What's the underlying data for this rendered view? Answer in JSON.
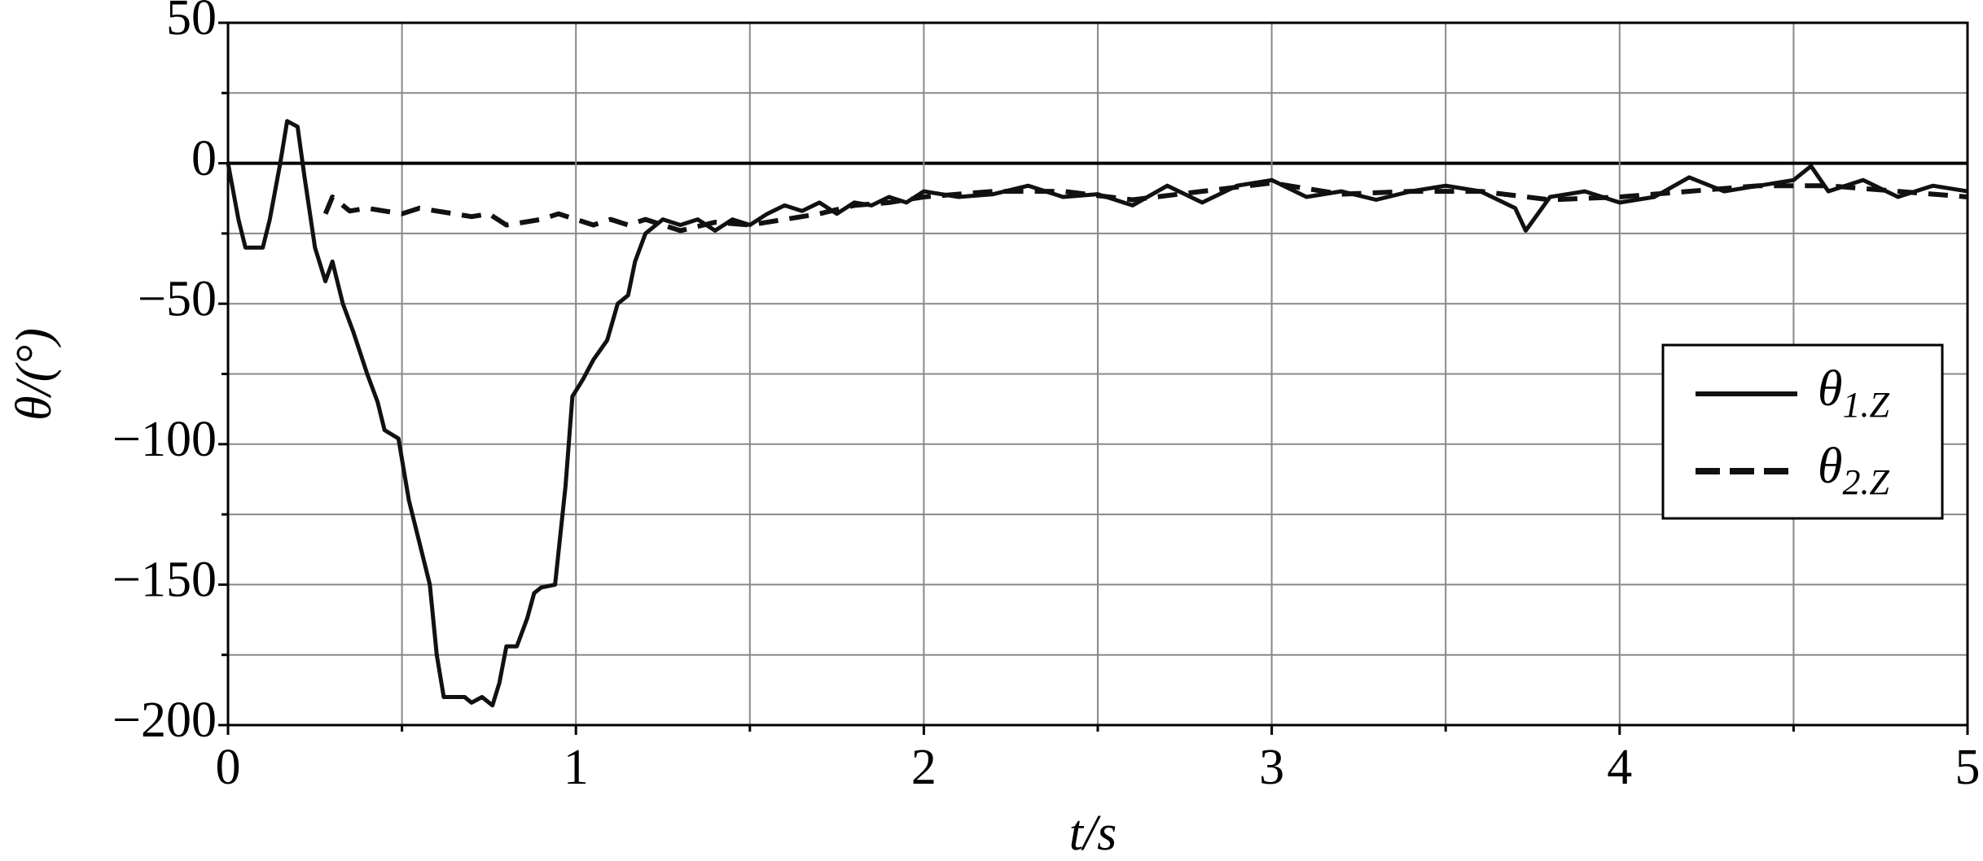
{
  "chart_data": {
    "type": "line",
    "x_label": "t/s",
    "y_label": "θ/(°)",
    "xlim": [
      0,
      5
    ],
    "xticks": [
      0,
      1,
      2,
      3,
      4,
      5
    ],
    "xminor": [
      0.5,
      1.5,
      2.5,
      3.5,
      4.5
    ],
    "ylim": [
      -200,
      50
    ],
    "yticks": [
      {
        "value": -200,
        "label": "−200"
      },
      {
        "value": -150,
        "label": "−150"
      },
      {
        "value": -100,
        "label": "−100"
      },
      {
        "value": -50,
        "label": "−50"
      },
      0,
      50
    ],
    "yminor": [
      -175,
      -125,
      -75,
      -25,
      25
    ],
    "grid": true,
    "legend": "right",
    "series": [
      {
        "name": "θ1.Z",
        "color": "#111111",
        "dash": false,
        "x": [
          0,
          0.03,
          0.05,
          0.1,
          0.12,
          0.15,
          0.17,
          0.2,
          0.22,
          0.25,
          0.28,
          0.3,
          0.33,
          0.36,
          0.4,
          0.43,
          0.45,
          0.49,
          0.52,
          0.55,
          0.58,
          0.6,
          0.62,
          0.65,
          0.68,
          0.7,
          0.73,
          0.76,
          0.78,
          0.8,
          0.83,
          0.86,
          0.88,
          0.9,
          0.94,
          0.97,
          0.99,
          1.02,
          1.05,
          1.09,
          1.12,
          1.15,
          1.17,
          1.2,
          1.25,
          1.3,
          1.35,
          1.4,
          1.45,
          1.5,
          1.55,
          1.6,
          1.65,
          1.7,
          1.75,
          1.8,
          1.85,
          1.9,
          1.95,
          2.0,
          2.1,
          2.2,
          2.3,
          2.4,
          2.5,
          2.6,
          2.7,
          2.8,
          2.9,
          3.0,
          3.1,
          3.2,
          3.3,
          3.4,
          3.5,
          3.6,
          3.7,
          3.73,
          3.8,
          3.9,
          4.0,
          4.1,
          4.2,
          4.3,
          4.4,
          4.5,
          4.55,
          4.6,
          4.7,
          4.8,
          4.9,
          5.0
        ],
        "values": [
          0,
          -20,
          -30,
          -30,
          -20,
          0,
          15,
          13,
          -5,
          -30,
          -42,
          -35,
          -50,
          -60,
          -75,
          -85,
          -95,
          -98,
          -120,
          -135,
          -150,
          -175,
          -190,
          -190,
          -190,
          -192,
          -190,
          -193,
          -185,
          -172,
          -172,
          -162,
          -153,
          -151,
          -150,
          -115,
          -83,
          -77,
          -70,
          -63,
          -50,
          -47,
          -35,
          -25,
          -20,
          -22,
          -20,
          -24,
          -20,
          -22,
          -18,
          -15,
          -17,
          -14,
          -18,
          -14,
          -15,
          -12,
          -14,
          -10,
          -12,
          -11,
          -8,
          -12,
          -11,
          -15,
          -8,
          -14,
          -8,
          -6,
          -12,
          -10,
          -13,
          -10,
          -8,
          -10,
          -16,
          -24,
          -12,
          -10,
          -14,
          -12,
          -5,
          -10,
          -8,
          -6,
          -1,
          -10,
          -6,
          -12,
          -8,
          -10
        ]
      },
      {
        "name": "θ2.Z",
        "color": "#111111",
        "dash": true,
        "x": [
          0.28,
          0.3,
          0.35,
          0.4,
          0.45,
          0.5,
          0.55,
          0.6,
          0.65,
          0.7,
          0.75,
          0.8,
          0.85,
          0.9,
          0.95,
          1.0,
          1.05,
          1.1,
          1.15,
          1.2,
          1.3,
          1.4,
          1.5,
          1.6,
          1.7,
          1.8,
          1.9,
          2.0,
          2.2,
          2.4,
          2.6,
          2.8,
          3.0,
          3.2,
          3.4,
          3.6,
          3.8,
          4.0,
          4.2,
          4.4,
          4.6,
          4.8,
          5.0
        ],
        "values": [
          -18,
          -12,
          -17,
          -16,
          -17,
          -18,
          -16,
          -17,
          -18,
          -19,
          -18,
          -22,
          -21,
          -20,
          -18,
          -20,
          -22,
          -20,
          -22,
          -20,
          -24,
          -21,
          -22,
          -20,
          -18,
          -15,
          -14,
          -12,
          -10,
          -10,
          -13,
          -10,
          -7,
          -11,
          -10,
          -10,
          -13,
          -12,
          -10,
          -8,
          -8,
          -10,
          -12
        ]
      }
    ]
  }
}
